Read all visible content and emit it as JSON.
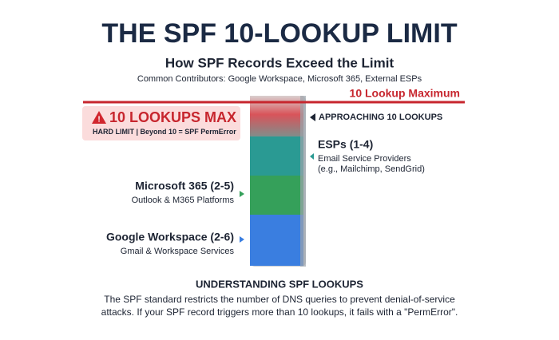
{
  "header": {
    "title": "THE SPF 10-LOOKUP LIMIT",
    "subtitle": "How SPF Records Exceed the Limit",
    "caption": "Common Contributors: Google Workspace, Microsoft 365, External ESPs"
  },
  "limit_line": {
    "label": "10 Lookup Maximum"
  },
  "alert": {
    "title": "10 LOOKUPS MAX",
    "subtitle": "HARD LIMIT | Beyond 10 = SPF PermError"
  },
  "segments": [
    {
      "label": "APPROACHING 10 LOOKUPS"
    },
    {
      "label": "ESPs (1-4)",
      "description": [
        "Email Service Providers",
        "(e.g., Mailchimp, SendGrid)"
      ]
    },
    {
      "label": "Microsoft 365 (2-5)",
      "description": [
        "Outlook & M365 Platforms"
      ]
    },
    {
      "label": "Google Workspace (2-6)",
      "description": [
        "Gmail & Workspace Services"
      ]
    }
  ],
  "footer": {
    "heading": "UNDERSTANDING SPF LOOKUPS",
    "lines": [
      "The SPF standard restricts the number of DNS queries to prevent denial-of-service",
      "attacks. If your SPF record triggers more than 10 lookups, it fails with a \"PermError\"."
    ]
  }
}
